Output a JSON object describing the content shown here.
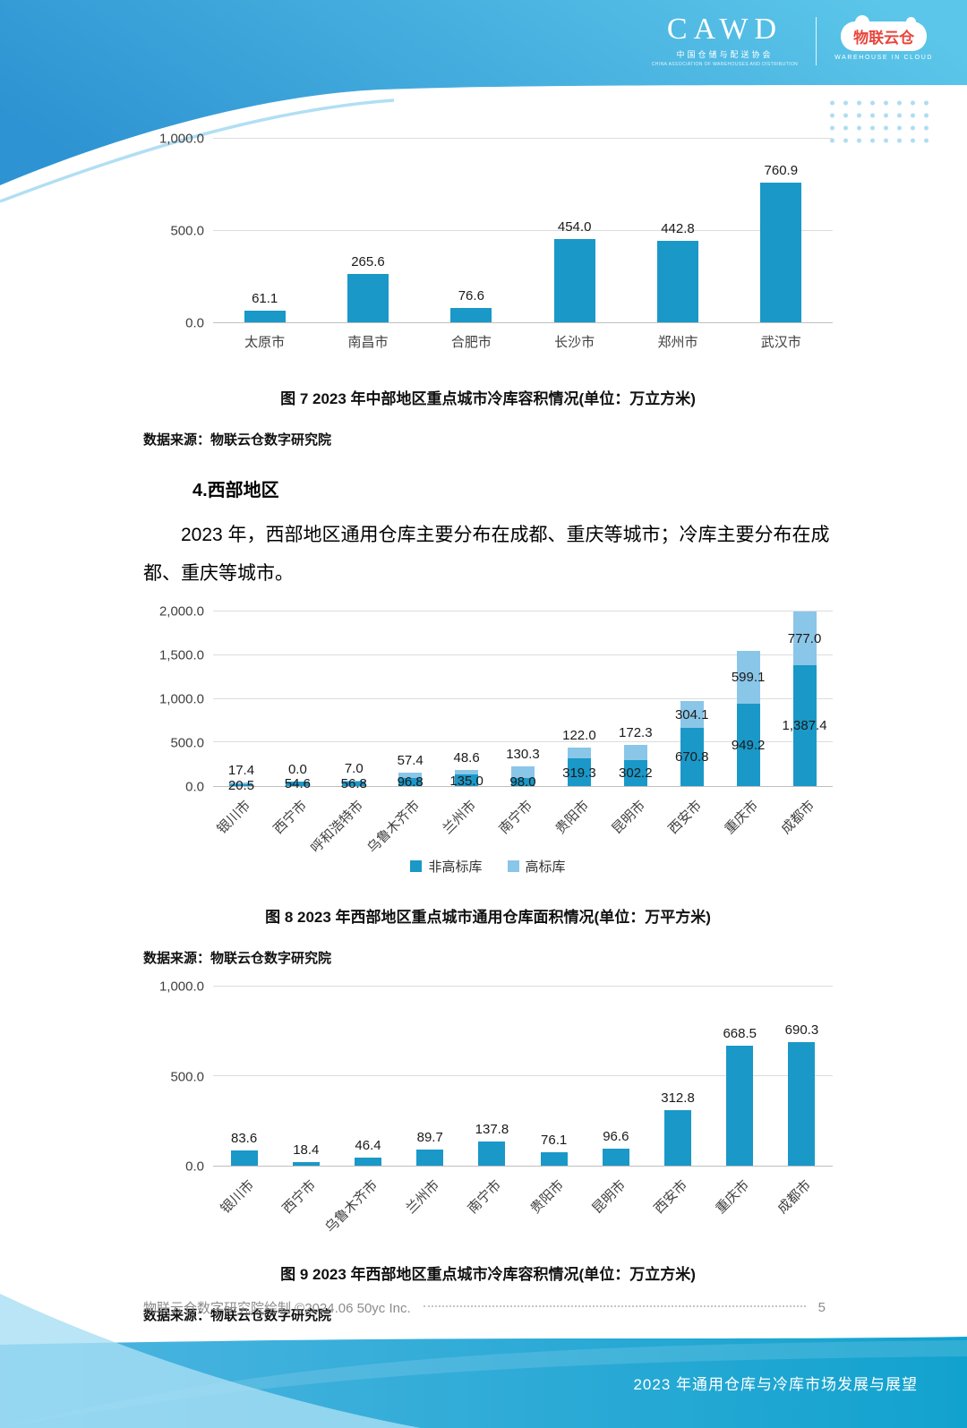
{
  "header": {
    "cawd_name": "CAWD",
    "cawd_sub": "中国仓储与配送协会",
    "cawd_sub_en": "CHINA ASSOCIATION OF WAREHOUSES AND DISTRIBUTION",
    "cloud_name": "物联云仓",
    "cloud_sub": "WAREHOUSE IN CLOUD"
  },
  "section": {
    "heading": "4.西部地区",
    "paragraph": "2023 年，西部地区通用仓库主要分布在成都、重庆等城市；冷库主要分布在成都、重庆等城市。"
  },
  "colors": {
    "bar_primary": "#1A98C8",
    "bar_secondary": "#8AC6E8",
    "header_gradient_start": "#2E93D2",
    "header_gradient_end": "#5BC6E9",
    "banner_gradient_start": "#4FB5E1",
    "banner_gradient_end": "#12A2CE"
  },
  "chart_data": [
    {
      "type": "bar",
      "title": "2023 年中部地区重点城市冷库容积情况",
      "unit": "万立方米",
      "categories": [
        "太原市",
        "南昌市",
        "合肥市",
        "长沙市",
        "郑州市",
        "武汉市"
      ],
      "values": [
        61.1,
        265.6,
        76.6,
        454.0,
        442.8,
        760.9
      ],
      "labels": [
        "61.1",
        "265.6",
        "76.6",
        "454.0",
        "442.8",
        "760.9"
      ],
      "ylim": [
        0,
        1000
      ],
      "yticks": [
        "0.0",
        "500.0",
        "1,000.0"
      ],
      "grid": true,
      "legend_position": "none",
      "caption": "图 7  2023 年中部地区重点城市冷库容积情况(单位：万立方米)",
      "source": "数据来源：物联云仓数字研究院"
    },
    {
      "type": "stacked-bar",
      "title": "2023 年西部地区重点城市通用仓库面积情况",
      "unit": "万平方米",
      "categories": [
        "银川市",
        "西宁市",
        "呼和浩特市",
        "乌鲁木齐市",
        "兰州市",
        "南宁市",
        "贵阳市",
        "昆明市",
        "西安市",
        "重庆市",
        "成都市"
      ],
      "series": [
        {
          "name": "非高标库",
          "values": [
            20.5,
            54.6,
            56.8,
            96.8,
            135.0,
            98.0,
            319.3,
            302.2,
            670.8,
            949.2,
            1387.4
          ],
          "labels": [
            "20.5",
            "54.6",
            "56.8",
            "96.8",
            "135.0",
            "98.0",
            "319.3",
            "302.2",
            "670.8",
            "949.2",
            "1,387.4"
          ]
        },
        {
          "name": "高标库",
          "values": [
            17.4,
            0.0,
            7.0,
            57.4,
            48.6,
            130.3,
            122.0,
            172.3,
            304.1,
            599.1,
            777.0
          ],
          "labels": [
            "17.4",
            "0.0",
            "7.0",
            "57.4",
            "48.6",
            "130.3",
            "122.0",
            "172.3",
            "304.1",
            "599.1",
            "777.0"
          ]
        }
      ],
      "ylim": [
        0,
        2000
      ],
      "yticks": [
        "0.0",
        "500.0",
        "1,000.0",
        "1,500.0",
        "2,000.0"
      ],
      "grid": true,
      "legend_position": "bottom",
      "caption": "图 8  2023 年西部地区重点城市通用仓库面积情况(单位：万平方米)",
      "source": "数据来源：物联云仓数字研究院"
    },
    {
      "type": "bar",
      "title": "2023 年西部地区重点城市冷库容积情况",
      "unit": "万立方米",
      "categories": [
        "银川市",
        "西宁市",
        "乌鲁木齐市",
        "兰州市",
        "南宁市",
        "贵阳市",
        "昆明市",
        "西安市",
        "重庆市",
        "成都市"
      ],
      "values": [
        83.6,
        18.4,
        46.4,
        89.7,
        137.8,
        76.1,
        96.6,
        312.8,
        668.5,
        690.3
      ],
      "labels": [
        "83.6",
        "18.4",
        "46.4",
        "89.7",
        "137.8",
        "76.1",
        "96.6",
        "312.8",
        "668.5",
        "690.3"
      ],
      "ylim": [
        0,
        1000
      ],
      "yticks": [
        "0.0",
        "500.0",
        "1,000.0"
      ],
      "grid": true,
      "legend_position": "none",
      "caption": "图 9  2023 年西部地区重点城市冷库容积情况(单位：万立方米)",
      "source": "数据来源：物联云仓数字研究院"
    }
  ],
  "footer": {
    "left": "物联云仓数字研究院绘制 ©2024.06 50yc Inc.",
    "page": "5",
    "banner": "2023 年通用仓库与冷库市场发展与展望"
  }
}
